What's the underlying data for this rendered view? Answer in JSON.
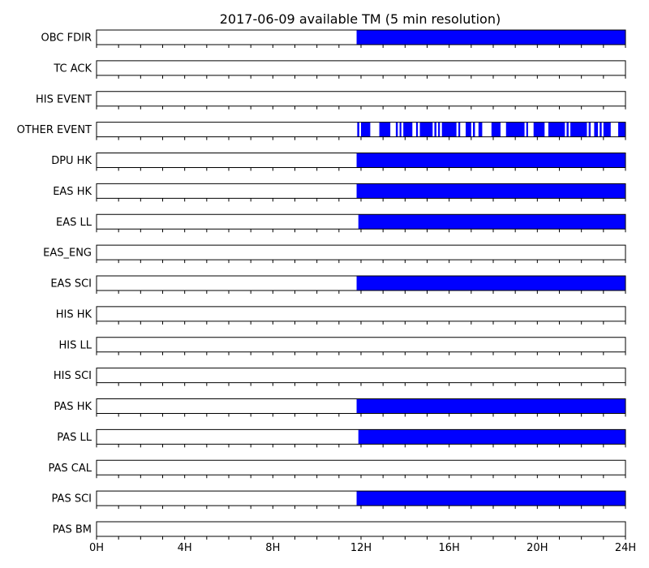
{
  "chart_data": {
    "type": "timeline",
    "title": "2017-06-09 available TM (5 min resolution)",
    "x_unit": "hours",
    "xlim": [
      0,
      24
    ],
    "x_ticks": [
      {
        "value": 0,
        "label": "0H"
      },
      {
        "value": 4,
        "label": "4H"
      },
      {
        "value": 8,
        "label": "8H"
      },
      {
        "value": 12,
        "label": "12H"
      },
      {
        "value": 16,
        "label": "16H"
      },
      {
        "value": 20,
        "label": "20H"
      },
      {
        "value": 24,
        "label": "24H"
      }
    ],
    "bar_color": "#0000ff",
    "series": [
      {
        "name": "OBC FDIR",
        "intervals": [
          [
            11.8,
            24
          ]
        ]
      },
      {
        "name": "TC ACK",
        "intervals": []
      },
      {
        "name": "HIS EVENT",
        "intervals": []
      },
      {
        "name": "OTHER EVENT",
        "intervals": [
          [
            11.83,
            11.92
          ],
          [
            12.0,
            12.42
          ],
          [
            12.83,
            13.33
          ],
          [
            13.58,
            13.67
          ],
          [
            13.75,
            13.83
          ],
          [
            13.92,
            14.33
          ],
          [
            14.5,
            14.58
          ],
          [
            14.67,
            15.25
          ],
          [
            15.33,
            15.42
          ],
          [
            15.5,
            15.58
          ],
          [
            15.67,
            16.33
          ],
          [
            16.42,
            16.5
          ],
          [
            16.75,
            17.0
          ],
          [
            17.08,
            17.17
          ],
          [
            17.33,
            17.5
          ],
          [
            17.92,
            18.33
          ],
          [
            18.58,
            19.42
          ],
          [
            19.5,
            19.58
          ],
          [
            19.83,
            20.33
          ],
          [
            20.5,
            21.25
          ],
          [
            21.33,
            21.42
          ],
          [
            21.5,
            22.25
          ],
          [
            22.33,
            22.42
          ],
          [
            22.58,
            22.75
          ],
          [
            22.83,
            22.92
          ],
          [
            23.0,
            23.33
          ],
          [
            23.67,
            24.0
          ]
        ]
      },
      {
        "name": "DPU HK",
        "intervals": [
          [
            11.8,
            24
          ]
        ]
      },
      {
        "name": "EAS HK",
        "intervals": [
          [
            11.8,
            24
          ]
        ]
      },
      {
        "name": "EAS LL",
        "intervals": [
          [
            11.88,
            24
          ]
        ]
      },
      {
        "name": "EAS_ENG",
        "intervals": []
      },
      {
        "name": "EAS SCI",
        "intervals": [
          [
            11.8,
            24
          ]
        ]
      },
      {
        "name": "HIS HK",
        "intervals": []
      },
      {
        "name": "HIS LL",
        "intervals": []
      },
      {
        "name": "HIS SCI",
        "intervals": []
      },
      {
        "name": "PAS HK",
        "intervals": [
          [
            11.8,
            24
          ]
        ]
      },
      {
        "name": "PAS LL",
        "intervals": [
          [
            11.88,
            24
          ]
        ]
      },
      {
        "name": "PAS CAL",
        "intervals": []
      },
      {
        "name": "PAS SCI",
        "intervals": [
          [
            11.8,
            24
          ]
        ]
      },
      {
        "name": "PAS BM",
        "intervals": []
      }
    ]
  }
}
